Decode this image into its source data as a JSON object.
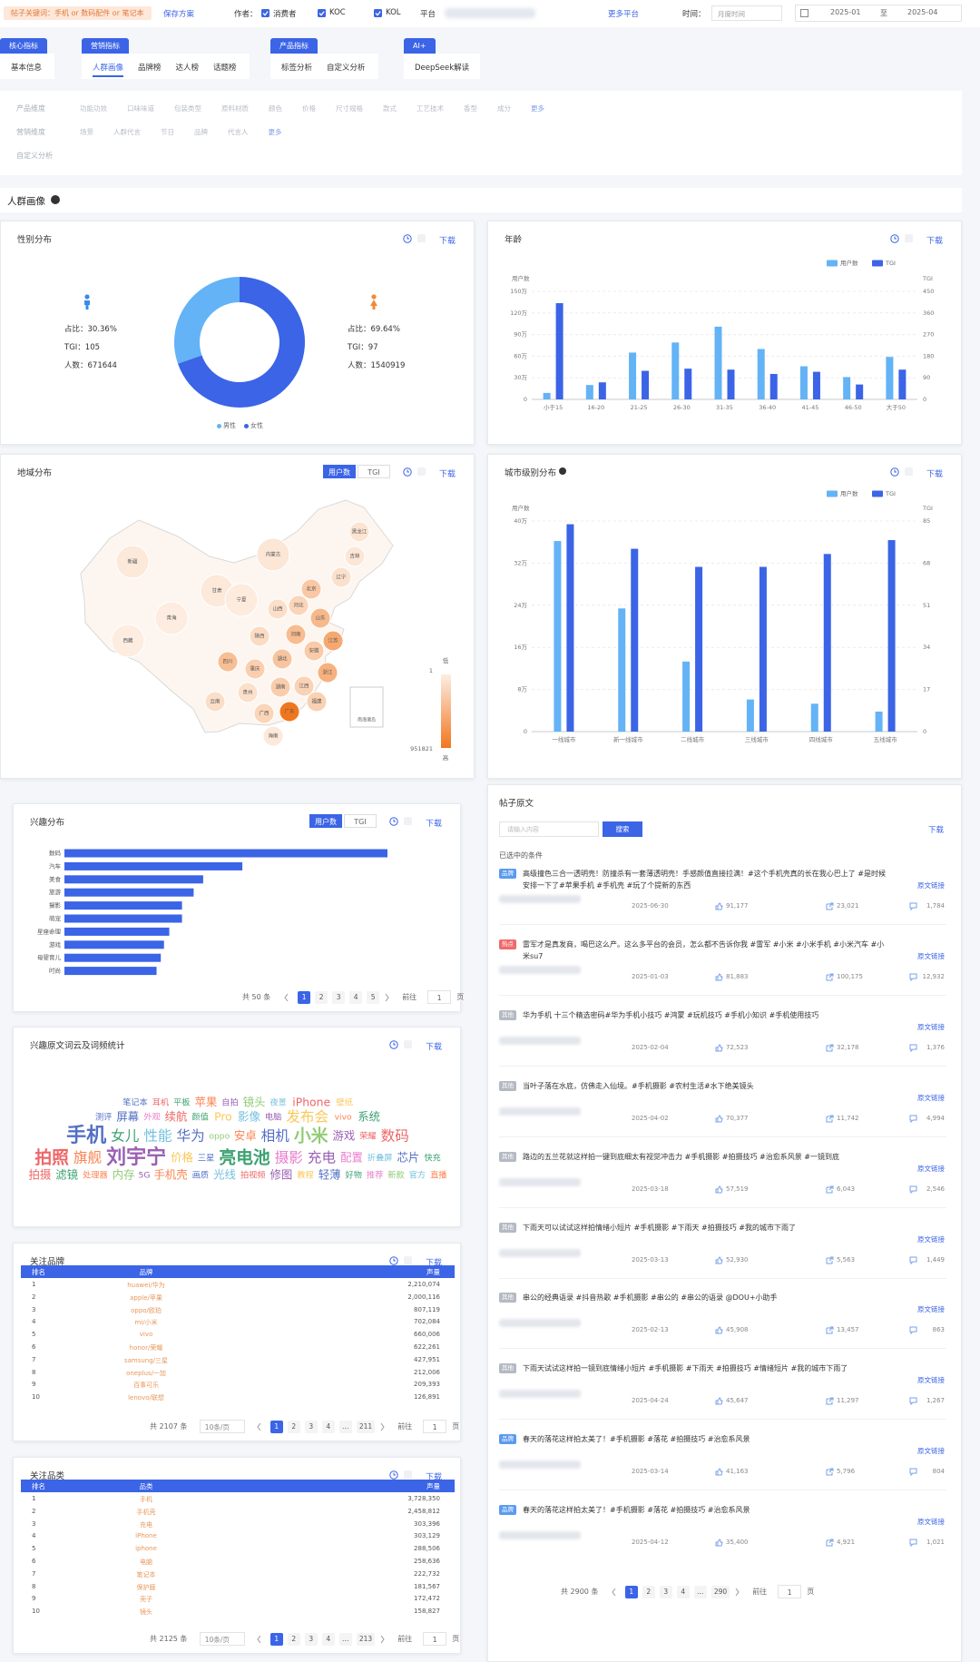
{
  "filter_bar": {
    "keyword_tag": "帖子关键词：手机 or 数码配件 or 笔记本",
    "save": "保存方案",
    "author_label": "作者：",
    "authors": [
      "消费者",
      "KOC",
      "KOL"
    ],
    "platform_label": "平台",
    "more_platforms": "更多平台",
    "time_label": "时间：",
    "time_mode": "月度时间",
    "start": "2025-01",
    "to": "至",
    "end": "2025-04"
  },
  "tabs": [
    {
      "group": "核心指标",
      "items": [
        "基本信息"
      ]
    },
    {
      "group": "营销指标",
      "items": [
        "人群画像",
        "品牌榜",
        "达人榜",
        "话题榜"
      ]
    },
    {
      "group": "产品指标",
      "items": [
        "标签分析",
        "自定义分析"
      ]
    },
    {
      "group": "AI+",
      "items": [
        "DeepSeek解读"
      ]
    }
  ],
  "active_tab": [
    1,
    0
  ],
  "dimensions": [
    {
      "label": "产品维度",
      "options": [
        "功能功效",
        "口味味道",
        "包装类型",
        "原料材质",
        "颜色",
        "价格",
        "尺寸规格",
        "款式",
        "工艺技术",
        "香型",
        "成分"
      ],
      "more": "更多"
    },
    {
      "label": "营销维度",
      "options": [
        "场景",
        "人群代言",
        "节日",
        "品牌",
        "代言人"
      ],
      "more": "更多"
    },
    {
      "label": "自定义分析",
      "options": []
    }
  ],
  "section_title": "人群画像",
  "gender": {
    "type": "pie",
    "title": "性别分布",
    "download": "下载",
    "items": [
      {
        "name": "男性",
        "share": 30.36,
        "share_label": "占比：30.36%",
        "tgi_label": "TGI：105",
        "count_label": "人数：671644",
        "color": "#63b3f6"
      },
      {
        "name": "女性",
        "share": 69.64,
        "share_label": "占比：69.64%",
        "tgi_label": "TGI：97",
        "count_label": "人数：1540919",
        "color": "#3b64e6"
      }
    ]
  },
  "age": {
    "type": "bar",
    "title": "年龄",
    "download": "下载",
    "categories": [
      "小于15",
      "16-20",
      "21-25",
      "26-30",
      "31-35",
      "36-40",
      "41-45",
      "46-50",
      "大于50"
    ],
    "series": [
      {
        "name": "用户数",
        "color": "#63b3f6",
        "values": [
          9,
          20,
          65,
          79,
          101,
          70,
          46,
          31,
          59
        ]
      },
      {
        "name": "TGI",
        "color": "#3b64e6",
        "axis": "y2",
        "values": [
          401,
          71,
          119,
          128,
          124,
          106,
          115,
          62,
          124
        ]
      }
    ],
    "y_label": "用户数",
    "y2_label": "TGI",
    "ylim": [
      0,
      150
    ],
    "yticks": [
      0,
      {
        "value": 30,
        "label": "30万"
      },
      {
        "value": 60,
        "label": "60万"
      },
      {
        "value": 90,
        "label": "90万"
      },
      {
        "value": 120,
        "label": "120万"
      },
      {
        "value": 150,
        "label": "150万"
      }
    ],
    "y2lim": [
      0,
      450
    ],
    "y2ticks": [
      0,
      90,
      180,
      270,
      360,
      450
    ],
    "grid": true
  },
  "region": {
    "type": "map",
    "title": "地域分布",
    "toggle": [
      "用户数",
      "TGI"
    ],
    "download": "下载",
    "regions": [
      {
        "name": "新疆",
        "value": 40000
      },
      {
        "name": "西藏",
        "value": 12000
      },
      {
        "name": "青海",
        "value": 15000
      },
      {
        "name": "甘肃",
        "value": 40000
      },
      {
        "name": "宁夏",
        "value": 20000
      },
      {
        "name": "内蒙古",
        "value": 60000
      },
      {
        "name": "黑龙江",
        "value": 80000
      },
      {
        "name": "吉林",
        "value": 60000
      },
      {
        "name": "辽宁",
        "value": 110000
      },
      {
        "name": "北京",
        "value": 300000
      },
      {
        "name": "河北",
        "value": 200000
      },
      {
        "name": "山西",
        "value": 120000
      },
      {
        "name": "陕西",
        "value": 150000
      },
      {
        "name": "四川",
        "value": 380000
      },
      {
        "name": "重庆",
        "value": 250000
      },
      {
        "name": "云南",
        "value": 130000
      },
      {
        "name": "贵州",
        "value": 110000
      },
      {
        "name": "广西",
        "value": 200000
      },
      {
        "name": "广东",
        "value": 951821
      },
      {
        "name": "湖南",
        "value": 260000
      },
      {
        "name": "湖北",
        "value": 330000
      },
      {
        "name": "河南",
        "value": 400000
      },
      {
        "name": "山东",
        "value": 420000
      },
      {
        "name": "江苏",
        "value": 550000
      },
      {
        "name": "安徽",
        "value": 280000
      },
      {
        "name": "浙江",
        "value": 480000
      },
      {
        "name": "江西",
        "value": 220000
      },
      {
        "name": "福建",
        "value": 230000
      },
      {
        "name": "海南",
        "value": 40000
      }
    ],
    "visual_map": {
      "min": 1,
      "max": 951821,
      "low": "低",
      "high": "高"
    },
    "inset": "南海诸岛"
  },
  "city": {
    "type": "bar",
    "title": "城市级别分布",
    "download": "下载",
    "categories": [
      "一线城市",
      "新一线城市",
      "二线城市",
      "三线城市",
      "四线城市",
      "五线城市"
    ],
    "series": [
      {
        "name": "用户数",
        "color": "#63b3f6",
        "values": [
          36.2,
          23.4,
          13.3,
          6.1,
          5.3,
          3.8
        ]
      },
      {
        "name": "TGI",
        "color": "#3b64e6",
        "axis": "y2",
        "values": [
          83.7,
          73.8,
          66.5,
          66.5,
          71.7,
          77.3
        ]
      }
    ],
    "y_label": "用户数",
    "y2_label": "TGI",
    "ylim": [
      0,
      40
    ],
    "yticks": [
      0,
      {
        "value": 8,
        "label": "8万"
      },
      {
        "value": 16,
        "label": "16万"
      },
      {
        "value": 24,
        "label": "24万"
      },
      {
        "value": 32,
        "label": "32万"
      },
      {
        "value": 40,
        "label": "40万"
      }
    ],
    "y2lim": [
      0,
      85
    ],
    "y2ticks": [
      0,
      17,
      34,
      51,
      68,
      85
    ],
    "grid": true
  },
  "interest": {
    "type": "bar",
    "title": "兴趣分布",
    "toggle": [
      "用户数",
      "TGI"
    ],
    "download": "下载",
    "categories": [
      "数码",
      "汽车",
      "美食",
      "旅游",
      "摄影",
      "萌宠",
      "星座命理",
      "游戏",
      "母婴育儿",
      "时尚"
    ],
    "values": [
      305,
      168,
      131,
      122,
      111,
      111,
      99,
      94,
      91,
      87
    ],
    "color": "#3b64e6",
    "pagination": {
      "total": "共 50 条",
      "pages": [
        "1",
        "2",
        "3",
        "4",
        "5"
      ],
      "current": "1",
      "goto": "前往",
      "goto_value": "1",
      "unit": "页"
    }
  },
  "wordcloud": {
    "title": "兴趣原文词云及词频统计",
    "download": "下载",
    "words": [
      {
        "text": "笔记本",
        "weight": 1,
        "color": "#5470c6"
      },
      {
        "text": "耳机",
        "weight": 1,
        "color": "#ee6666"
      },
      {
        "text": "平板",
        "weight": 1,
        "color": "#3ba272"
      },
      {
        "text": "苹果",
        "weight": 2,
        "color": "#fc8452"
      },
      {
        "text": "自拍",
        "weight": 1,
        "color": "#9a60b4"
      },
      {
        "text": "镜头",
        "weight": 2,
        "color": "#91cc75"
      },
      {
        "text": "夜景",
        "weight": 1,
        "color": "#73c0de"
      },
      {
        "text": "iPhone",
        "weight": 2,
        "color": "#ee6666"
      },
      {
        "text": "壁纸",
        "weight": 1,
        "color": "#fac858"
      },
      {
        "text": "测评",
        "weight": 1,
        "color": "#5470c6"
      },
      {
        "text": "屏幕",
        "weight": 2,
        "color": "#5470c6"
      },
      {
        "text": "外观",
        "weight": 1,
        "color": "#ea7ccc"
      },
      {
        "text": "续航",
        "weight": 2,
        "color": "#ee6666"
      },
      {
        "text": "颜值",
        "weight": 1,
        "color": "#3ba272"
      },
      {
        "text": "Pro",
        "weight": 2,
        "color": "#fac858"
      },
      {
        "text": "影像",
        "weight": 2,
        "color": "#73c0de"
      },
      {
        "text": "电脑",
        "weight": 1,
        "color": "#9a60b4"
      },
      {
        "text": "发布会",
        "weight": 3,
        "color": "#fac858"
      },
      {
        "text": "vivo",
        "weight": 1,
        "color": "#fc8452"
      },
      {
        "text": "系统",
        "weight": 2,
        "color": "#3ba272"
      },
      {
        "text": "手机",
        "weight": 5,
        "color": "#5470c6"
      },
      {
        "text": "女儿",
        "weight": 3,
        "color": "#3ba272"
      },
      {
        "text": "性能",
        "weight": 3,
        "color": "#73c0de"
      },
      {
        "text": "华为",
        "weight": 3,
        "color": "#5470c6"
      },
      {
        "text": "oppo",
        "weight": 1,
        "color": "#91cc75"
      },
      {
        "text": "安卓",
        "weight": 2,
        "color": "#fc8452"
      },
      {
        "text": "相机",
        "weight": 3,
        "color": "#5470c6"
      },
      {
        "text": "小米",
        "weight": 4,
        "color": "#91cc75"
      },
      {
        "text": "游戏",
        "weight": 2,
        "color": "#9a60b4"
      },
      {
        "text": "荣耀",
        "weight": 1,
        "color": "#ee6666"
      },
      {
        "text": "数码",
        "weight": 3,
        "color": "#ee6666"
      },
      {
        "text": "拍照",
        "weight": 4,
        "color": "#ee6666"
      },
      {
        "text": "旗舰",
        "weight": 3,
        "color": "#fc8452"
      },
      {
        "text": "刘宇宁",
        "weight": 5,
        "color": "#9a60b4"
      },
      {
        "text": "价格",
        "weight": 2,
        "color": "#fac858"
      },
      {
        "text": "三星",
        "weight": 1,
        "color": "#5470c6"
      },
      {
        "text": "亮电池",
        "weight": 4,
        "color": "#3ba272"
      },
      {
        "text": "摄影",
        "weight": 3,
        "color": "#ea7ccc"
      },
      {
        "text": "充电",
        "weight": 3,
        "color": "#9a60b4"
      },
      {
        "text": "配置",
        "weight": 2,
        "color": "#ea7ccc"
      },
      {
        "text": "折叠屏",
        "weight": 1,
        "color": "#73c0de"
      },
      {
        "text": "芯片",
        "weight": 2,
        "color": "#5470c6"
      },
      {
        "text": "快充",
        "weight": 1,
        "color": "#3ba272"
      },
      {
        "text": "拍摄",
        "weight": 2,
        "color": "#ee6666"
      },
      {
        "text": "滤镜",
        "weight": 2,
        "color": "#3ba272"
      },
      {
        "text": "处理器",
        "weight": 1,
        "color": "#fc8452"
      },
      {
        "text": "内存",
        "weight": 2,
        "color": "#91cc75"
      },
      {
        "text": "5G",
        "weight": 1,
        "color": "#9a60b4"
      },
      {
        "text": "手机壳",
        "weight": 2,
        "color": "#fc8452"
      },
      {
        "text": "画质",
        "weight": 1,
        "color": "#5470c6"
      },
      {
        "text": "光线",
        "weight": 2,
        "color": "#73c0de"
      },
      {
        "text": "拍视频",
        "weight": 1,
        "color": "#ee6666"
      },
      {
        "text": "修图",
        "weight": 2,
        "color": "#9a60b4"
      },
      {
        "text": "教程",
        "weight": 1,
        "color": "#fac858"
      },
      {
        "text": "轻薄",
        "weight": 2,
        "color": "#5470c6"
      },
      {
        "text": "好物",
        "weight": 1,
        "color": "#3ba272"
      },
      {
        "text": "推荐",
        "weight": 1,
        "color": "#ea7ccc"
      },
      {
        "text": "新款",
        "weight": 1,
        "color": "#91cc75"
      },
      {
        "text": "官方",
        "weight": 1,
        "color": "#73c0de"
      },
      {
        "text": "直播",
        "weight": 1,
        "color": "#fc8452"
      }
    ]
  },
  "brands": {
    "title": "关注品牌",
    "download": "下载",
    "columns": [
      "排名",
      "品牌",
      "声量"
    ],
    "rows": [
      [
        1,
        "huawei/华为",
        "2,210,074"
      ],
      [
        2,
        "apple/苹果",
        "2,000,116"
      ],
      [
        3,
        "oppo/欧珀",
        "807,119"
      ],
      [
        4,
        "mi/小米",
        "702,084"
      ],
      [
        5,
        "vivo",
        "660,006"
      ],
      [
        6,
        "honor/荣耀",
        "622,261"
      ],
      [
        7,
        "samsung/三星",
        "427,951"
      ],
      [
        8,
        "oneplus/一加",
        "212,006"
      ],
      [
        9,
        "百事可乐",
        "209,393"
      ],
      [
        10,
        "lenovo/联想",
        "126,891"
      ]
    ],
    "pagination": {
      "total": "共 2107 条",
      "page_size": "10条/页",
      "pages": [
        "1",
        "2",
        "3",
        "4",
        "…",
        "211"
      ],
      "current": "1",
      "goto": "前往",
      "goto_value": "1",
      "unit": "页"
    }
  },
  "product_categories": {
    "title": "关注品类",
    "download": "下载",
    "columns": [
      "排名",
      "品类",
      "声量"
    ],
    "rows": [
      [
        1,
        "手机",
        "3,728,350"
      ],
      [
        2,
        "手机壳",
        "2,458,812"
      ],
      [
        3,
        "充电",
        "303,396"
      ],
      [
        4,
        "iPhone",
        "303,129"
      ],
      [
        5,
        "iphone",
        "288,506"
      ],
      [
        6,
        "电脑",
        "258,636"
      ],
      [
        7,
        "笔记本",
        "222,732"
      ],
      [
        8,
        "保护膜",
        "181,567"
      ],
      [
        9,
        "壳子",
        "172,472"
      ],
      [
        10,
        "镜头",
        "158,827"
      ]
    ],
    "pagination": {
      "total": "共 2125 条",
      "page_size": "10条/页",
      "pages": [
        "1",
        "2",
        "3",
        "4",
        "…",
        "213"
      ],
      "current": "1",
      "goto": "前往",
      "goto_value": "1",
      "unit": "页"
    }
  },
  "posts": {
    "title": "帖子原文",
    "search_placeholder": "请输入内容",
    "search": "搜索",
    "download": "下载",
    "selected": "已选中的条件",
    "link": "原文链接",
    "items": [
      {
        "tag": "品牌",
        "tag_color": "#5b9bf0",
        "text": "高级撞色三合一透明壳！防撞杀有一套薄透明壳！手感颜值直接拉满！#这个手机壳真的长在我心巴上了 #是时候安排一下了#苹果手机 #手机壳 #玩了个提新的东西",
        "date": "2025-06-30",
        "likes": "91,177",
        "shares": "23,021",
        "comments": "1,784"
      },
      {
        "tag": "热点",
        "tag_color": "#f06a6a",
        "text": "雷军才是真发商，喝巴这么产。这么多平台的会员，怎么都不告诉你我 #雷军 #小米 #小米手机 #小米汽车 #小米su7",
        "date": "2025-01-03",
        "likes": "81,883",
        "shares": "100,175",
        "comments": "12,932"
      },
      {
        "tag": "其他",
        "tag_color": "#b4b9c2",
        "text": "华为手机 十三个精选密码#华为手机小技巧 #鸿蒙 #玩机技巧 #手机小知识 #手机使用技巧",
        "date": "2025-02-04",
        "likes": "72,523",
        "shares": "32,178",
        "comments": "1,376"
      },
      {
        "tag": "其他",
        "tag_color": "#b4b9c2",
        "text": "当叶子落在水底，仿佛走入仙境。#手机摄影 #农村生活#水下绝美镜头",
        "date": "2025-04-02",
        "likes": "70,377",
        "shares": "11,742",
        "comments": "4,994"
      },
      {
        "tag": "其他",
        "tag_color": "#b4b9c2",
        "text": "路边的五兰花就这样拍一键到底细太有视觉冲击力 #手机摄影 #拍摄技巧 #治愈系风景 #一镜到底",
        "date": "2025-03-18",
        "likes": "57,519",
        "shares": "6,043",
        "comments": "2,546"
      },
      {
        "tag": "其他",
        "tag_color": "#b4b9c2",
        "text": "下雨天可以试试这样拍情绪小短片 #手机摄影 #下雨天 #拍摄技巧 #我的城市下雨了",
        "date": "2025-03-13",
        "likes": "52,930",
        "shares": "5,563",
        "comments": "1,449"
      },
      {
        "tag": "其他",
        "tag_color": "#b4b9c2",
        "text": "串公的经典语录 #抖音热歌 #手机摄影 #串公的 #串公的语录 @DOU+小助手",
        "date": "2025-02-13",
        "likes": "45,908",
        "shares": "13,457",
        "comments": "863"
      },
      {
        "tag": "其他",
        "tag_color": "#b4b9c2",
        "text": "下雨天试试这样拍一镜到底情绪小短片 #手机摄影 #下雨天 #拍摄技巧 #情绪短片 #我的城市下雨了",
        "date": "2025-04-24",
        "likes": "45,647",
        "shares": "11,297",
        "comments": "1,267"
      },
      {
        "tag": "品牌",
        "tag_color": "#5b9bf0",
        "text": "春天的落花这样拍太美了！#手机摄影 #落花 #拍摄技巧 #治愈系风景",
        "date": "2025-03-14",
        "likes": "41,163",
        "shares": "5,796",
        "comments": "804"
      },
      {
        "tag": "品牌",
        "tag_color": "#5b9bf0",
        "text": "春天的落花这样拍太美了！#手机摄影 #落花 #拍摄技巧 #治愈系风景",
        "date": "2025-04-12",
        "likes": "35,400",
        "shares": "4,921",
        "comments": "1,021"
      }
    ],
    "pagination": {
      "total": "共 2900 条",
      "pages": [
        "1",
        "2",
        "3",
        "4",
        "…",
        "290"
      ],
      "current": "1",
      "goto": "前往",
      "goto_value": "1",
      "unit": "页"
    }
  }
}
